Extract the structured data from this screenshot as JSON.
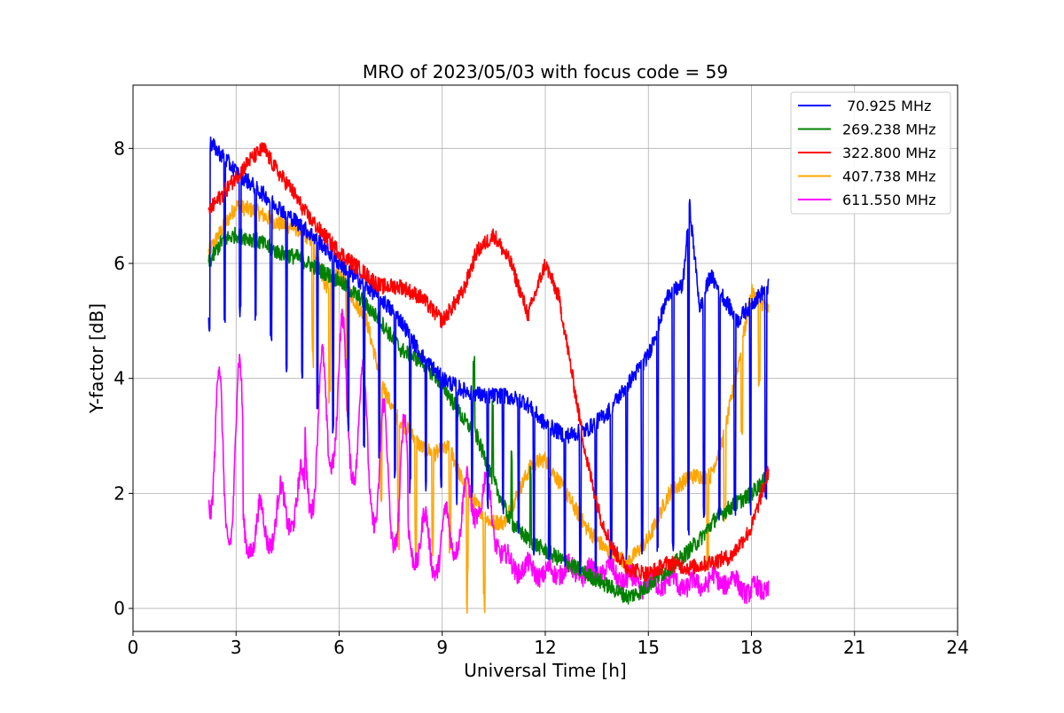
{
  "chart_data": {
    "type": "line",
    "title": "MRO of 2023/05/03 with focus code = 59",
    "xlabel": "Universal Time [h]",
    "ylabel": "Y-factor [dB]",
    "xlim": [
      0,
      24
    ],
    "ylim": [
      -0.4,
      9.1
    ],
    "xticks": [
      0,
      3,
      6,
      9,
      12,
      15,
      18,
      21,
      24
    ],
    "xtick_labels": [
      "0",
      "3",
      "6",
      "9",
      "12",
      "15",
      "18",
      "21",
      "24"
    ],
    "yticks": [
      0,
      2,
      4,
      6,
      8
    ],
    "ytick_labels": [
      "0",
      "2",
      "4",
      "6",
      "8"
    ],
    "grid": true,
    "legend_position": "top-right",
    "series": [
      {
        "name": " 70.925 MHz",
        "color": "#0000ff",
        "spike_min": [
          4.8,
          5.0,
          4.6,
          4.0,
          3.4,
          3.0,
          2.6,
          2.2,
          2.0,
          2.0,
          1.8,
          1.6,
          1.2,
          0.8,
          0.6,
          0.6,
          0.8,
          0.9,
          0.9,
          1.2,
          1.5,
          1.6,
          1.8
        ],
        "x": [
          2.2,
          2.4,
          3.0,
          3.6,
          4.2,
          4.8,
          5.4,
          6.0,
          6.6,
          7.2,
          7.8,
          8.4,
          9.0,
          9.6,
          10.2,
          10.8,
          11.4,
          12.0,
          12.6,
          13.2,
          13.8,
          14.4,
          15.0,
          15.6,
          16.0,
          16.2,
          16.5,
          16.8,
          17.2,
          17.6,
          18.0,
          18.5
        ],
        "y": [
          8.1,
          8.0,
          7.6,
          7.3,
          7.0,
          6.7,
          6.4,
          6.0,
          5.7,
          5.4,
          5.0,
          4.4,
          4.0,
          3.8,
          3.7,
          3.7,
          3.6,
          3.2,
          3.0,
          3.1,
          3.4,
          3.9,
          4.4,
          5.5,
          5.6,
          7.0,
          5.2,
          5.8,
          5.4,
          5.0,
          5.3,
          5.6
        ]
      },
      {
        "name": "269.238 MHz",
        "color": "#008000",
        "x": [
          2.2,
          2.6,
          3.0,
          3.6,
          4.2,
          4.8,
          5.4,
          6.0,
          6.6,
          7.2,
          7.8,
          8.4,
          9.0,
          9.6,
          10.0,
          10.5,
          11.0,
          11.5,
          12.0,
          12.6,
          13.2,
          13.8,
          14.4,
          14.8,
          15.2,
          15.6,
          16.0,
          16.5,
          17.0,
          17.5,
          18.0,
          18.5
        ],
        "y": [
          6.0,
          6.4,
          6.5,
          6.4,
          6.2,
          6.1,
          5.9,
          5.7,
          5.4,
          5.0,
          4.5,
          4.3,
          3.9,
          3.3,
          3.0,
          2.2,
          1.5,
          1.2,
          1.0,
          0.8,
          0.6,
          0.4,
          0.2,
          0.3,
          0.5,
          0.7,
          0.9,
          1.2,
          1.6,
          1.8,
          2.0,
          2.3
        ]
      },
      {
        "name": "322.800 MHz",
        "color": "#ff0000",
        "x": [
          2.2,
          2.6,
          3.0,
          3.4,
          3.8,
          4.2,
          4.6,
          5.0,
          5.4,
          6.0,
          6.6,
          7.2,
          7.8,
          8.4,
          9.0,
          9.6,
          10.0,
          10.5,
          11.0,
          11.5,
          12.0,
          12.4,
          12.8,
          13.2,
          13.6,
          14.0,
          14.4,
          15.0,
          15.6,
          16.2,
          16.8,
          17.4,
          18.0,
          18.5
        ],
        "y": [
          6.9,
          7.2,
          7.5,
          7.8,
          8.0,
          7.6,
          7.3,
          6.9,
          6.6,
          6.2,
          5.9,
          5.6,
          5.6,
          5.4,
          5.0,
          5.5,
          6.2,
          6.5,
          6.0,
          5.1,
          6.0,
          5.4,
          4.0,
          2.6,
          1.6,
          1.0,
          0.7,
          0.6,
          0.8,
          0.7,
          0.8,
          0.9,
          1.4,
          2.4
        ]
      },
      {
        "name": "407.738 MHz",
        "color": "#ffa500",
        "x": [
          2.2,
          2.6,
          3.0,
          3.6,
          4.2,
          4.8,
          5.2,
          5.6,
          6.0,
          6.4,
          6.8,
          7.2,
          7.6,
          8.0,
          8.4,
          8.8,
          9.2,
          9.6,
          10.0,
          10.4,
          10.8,
          11.2,
          11.6,
          12.0,
          12.6,
          13.2,
          13.8,
          14.4,
          15.0,
          15.6,
          16.2,
          16.8,
          17.2,
          17.6,
          18.0,
          18.5
        ],
        "y": [
          6.2,
          6.6,
          7.0,
          6.9,
          6.7,
          6.6,
          6.4,
          5.6,
          5.8,
          5.4,
          5.0,
          4.0,
          3.4,
          3.1,
          2.8,
          2.7,
          2.8,
          2.2,
          1.8,
          1.5,
          1.5,
          2.0,
          2.5,
          2.6,
          2.0,
          1.4,
          1.0,
          0.8,
          1.2,
          2.0,
          2.3,
          2.3,
          3.0,
          4.2,
          5.5,
          5.2
        ]
      },
      {
        "name": "611.550 MHz",
        "color": "#ff00ff",
        "x": [
          2.2,
          2.4,
          2.7,
          3.0,
          3.3,
          3.6,
          4.0,
          4.4,
          4.8,
          5.2,
          5.6,
          6.0,
          6.4,
          6.8,
          7.2,
          7.6,
          8.0,
          8.4,
          8.8,
          9.2,
          9.6,
          10.0,
          10.4,
          10.8,
          11.2,
          11.6,
          12.0,
          12.6,
          13.2,
          13.8,
          14.4,
          15.0,
          15.6,
          16.2,
          16.8,
          17.4,
          18.0,
          18.5
        ],
        "y": [
          1.8,
          1.0,
          1.1,
          1.2,
          1.0,
          0.9,
          1.1,
          1.3,
          1.5,
          1.7,
          2.2,
          2.8,
          2.3,
          1.8,
          1.2,
          1.1,
          0.9,
          0.7,
          0.6,
          0.8,
          1.2,
          1.6,
          1.3,
          0.8,
          0.6,
          0.6,
          0.5,
          0.6,
          0.5,
          0.6,
          0.4,
          0.3,
          0.4,
          0.3,
          0.4,
          0.4,
          0.2,
          0.3
        ]
      }
    ]
  }
}
